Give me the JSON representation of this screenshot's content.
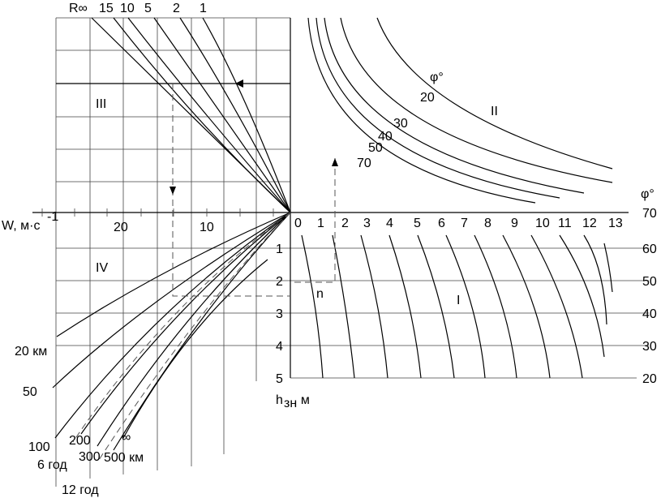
{
  "top_labels": [
    "R∞",
    "15",
    "10",
    "5",
    "2",
    "1"
  ],
  "quadrants": [
    "I",
    "II",
    "III",
    "IV"
  ],
  "phi_curves": {
    "title": "φ°",
    "labels": [
      "20",
      "30",
      "40",
      "50",
      "70"
    ]
  },
  "right_axis": {
    "title": "φ°",
    "labels": [
      "70",
      "60",
      "50",
      "40",
      "30",
      "20"
    ]
  },
  "w_axis": {
    "title": "W, м·с",
    "exponent": "-1",
    "labels": [
      "20",
      "10"
    ]
  },
  "x_axis_labels": [
    "0",
    "1",
    "2",
    "3",
    "4",
    "5",
    "6",
    "7",
    "8",
    "9",
    "10",
    "11",
    "12",
    "13"
  ],
  "h_axis": {
    "title_h": "h",
    "title_sub": "зн",
    "title_unit": ", м",
    "labels": [
      "1",
      "2",
      "3",
      "4",
      "5"
    ]
  },
  "n_label": "n",
  "fetch_labels": [
    "20 км",
    "50",
    "100",
    "200",
    "6 год",
    "300",
    "500 км",
    "∞",
    "12 год"
  ]
}
